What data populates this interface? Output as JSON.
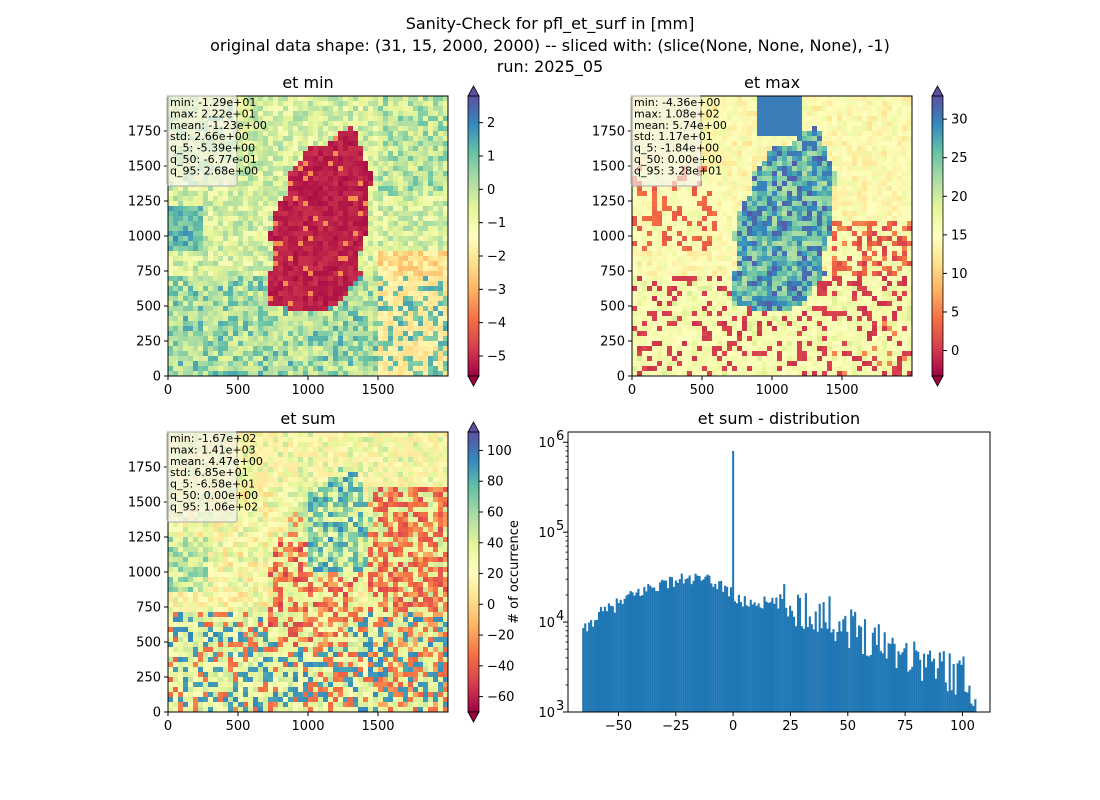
{
  "figure": {
    "title_lines": [
      "Sanity-Check for pfl_et_surf in [mm]",
      "original data shape: (31, 15, 2000, 2000) -- sliced with: (slice(None, None, None), -1)",
      "run: 2025_05"
    ]
  },
  "panels": [
    {
      "title": "et min",
      "x_ticks": [
        "0",
        "500",
        "1000",
        "1500"
      ],
      "y_ticks": [
        "0",
        "250",
        "500",
        "750",
        "1000",
        "1250",
        "1500",
        "1750"
      ],
      "stats": [
        "min: -1.29e+01",
        "max: 2.22e+01",
        "mean: -1.23e+00",
        "std: 2.66e+00",
        "q_5: -5.39e+00",
        "q_50: -6.77e-01",
        "q_95: 2.68e+00"
      ],
      "colorbar": {
        "min": -5.6,
        "max": 2.8,
        "ticks": [
          "-5",
          "-4",
          "-3",
          "-2",
          "-1",
          "0",
          "1",
          "2"
        ],
        "tick_values": [
          -5,
          -4,
          -3,
          -2,
          -1,
          0,
          1,
          2
        ],
        "extend": "both"
      },
      "map_style": "min"
    },
    {
      "title": "et max",
      "x_ticks": [
        "0",
        "500",
        "1000",
        "1500"
      ],
      "y_ticks": [
        "0",
        "250",
        "500",
        "750",
        "1000",
        "1250",
        "1500",
        "1750"
      ],
      "stats": [
        "min: -4.36e+00",
        "max: 1.08e+02",
        "mean: 5.74e+00",
        "std: 1.17e+01",
        "q_5: -1.84e+00",
        "q_50: 0.00e+00",
        "q_95: 3.28e+01"
      ],
      "colorbar": {
        "min": -3.3,
        "max": 33,
        "ticks": [
          "0",
          "5",
          "10",
          "15",
          "20",
          "25",
          "30"
        ],
        "tick_values": [
          0,
          5,
          10,
          15,
          20,
          25,
          30
        ],
        "extend": "both"
      },
      "map_style": "max"
    },
    {
      "title": "et sum",
      "x_ticks": [
        "0",
        "500",
        "1000",
        "1500"
      ],
      "y_ticks": [
        "0",
        "250",
        "500",
        "750",
        "1000",
        "1250",
        "1500",
        "1750"
      ],
      "stats": [
        "min: -1.67e+02",
        "max: 1.41e+03",
        "mean: 4.47e+00",
        "std: 6.85e+01",
        "q_5: -6.58e+01",
        "q_50: 0.00e+00",
        "q_95: 1.06e+02"
      ],
      "colorbar": {
        "min": -70,
        "max": 112,
        "ticks": [
          "-60",
          "-40",
          "-20",
          "0",
          "20",
          "40",
          "60",
          "80",
          "100"
        ],
        "tick_values": [
          -60,
          -40,
          -20,
          0,
          20,
          40,
          60,
          80,
          100
        ],
        "extend": "both"
      },
      "map_style": "sum"
    }
  ],
  "chart_data": {
    "type": "bar",
    "title": "et sum - distribution",
    "xlabel": "",
    "ylabel": "# of occurrence",
    "ylog": true,
    "x_ticks": [
      "−50",
      "−25",
      "0",
      "25",
      "50",
      "75",
      "100"
    ],
    "x_tick_values": [
      -50,
      -25,
      0,
      25,
      50,
      75,
      100
    ],
    "y_ticks": [
      "10",
      "10",
      "10",
      "10"
    ],
    "y_tick_exponents": [
      "3",
      "4",
      "5",
      "6"
    ],
    "y_tick_values": [
      1000,
      10000,
      100000,
      1000000
    ],
    "xlim": [
      -72,
      112
    ],
    "ylim": [
      1000,
      1300000
    ],
    "bar_color": "#1f77b4",
    "bin_range": [
      -65.8,
      106
    ],
    "bin_count": 200,
    "anchors": [
      [
        -65.8,
        7500
      ],
      [
        -63,
        9000
      ],
      [
        -60,
        11500
      ],
      [
        -55,
        13500
      ],
      [
        -50,
        16000
      ],
      [
        -45,
        19000
      ],
      [
        -40,
        22000
      ],
      [
        -35,
        25000
      ],
      [
        -30,
        27000
      ],
      [
        -25,
        29000
      ],
      [
        -20,
        30000
      ],
      [
        -15,
        30000
      ],
      [
        -10,
        28000
      ],
      [
        -5,
        26000
      ],
      [
        -1.5,
        22000
      ],
      [
        0,
        20000
      ],
      [
        2,
        17000
      ],
      [
        10,
        16500
      ],
      [
        20,
        16000
      ],
      [
        30,
        14000
      ],
      [
        40,
        12000
      ],
      [
        50,
        9000
      ],
      [
        60,
        7000
      ],
      [
        70,
        5500
      ],
      [
        80,
        4000
      ],
      [
        90,
        3200
      ],
      [
        100,
        2500
      ],
      [
        106,
        1800
      ]
    ],
    "spike": {
      "x": 0,
      "value": 800000
    }
  },
  "colors": {
    "spectral_stops": [
      "#9e0142",
      "#d53e4f",
      "#f46d43",
      "#fdae61",
      "#fee08b",
      "#ffffbf",
      "#e6f598",
      "#abdda4",
      "#66c2a5",
      "#3288bd",
      "#5e4fa2"
    ]
  }
}
